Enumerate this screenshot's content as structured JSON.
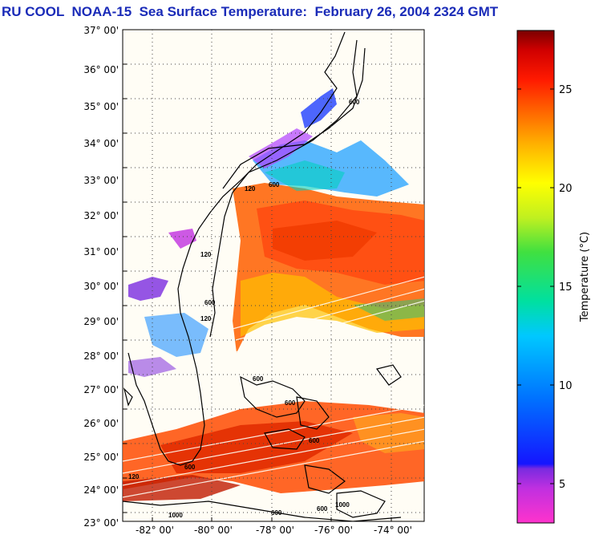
{
  "header": {
    "title": "RU COOL  NOAA-15  Sea Surface Temperature:  February 26, 2004 2324 GMT"
  },
  "map": {
    "lat_labels": [
      "37° 00'",
      "36° 00'",
      "35° 00'",
      "34° 00'",
      "33° 00'",
      "32° 00'",
      "31° 00'",
      "30° 00'",
      "29° 00'",
      "28° 00'",
      "27° 00'",
      "26° 00'",
      "25° 00'",
      "24° 00'",
      "23° 00'"
    ],
    "lon_labels": [
      "-82° 00'",
      "-80° 00'",
      "-78° 00'",
      "-76° 00'",
      "-74° 00'"
    ],
    "contour_labels": [
      "600",
      "120",
      "600",
      "120",
      "600",
      "120",
      "600",
      "600",
      "600",
      "120",
      "600",
      "1000",
      "600",
      "600",
      "1000"
    ],
    "colors": {
      "background": "#fffdf5",
      "land_outline": "#000000",
      "grid_dots": "#444444"
    }
  },
  "colorbar": {
    "label": "Temperature (°C)",
    "ticks": [
      "25",
      "20",
      "15",
      "10",
      "5"
    ],
    "range": [
      3,
      28.5
    ],
    "colors": [
      "#ff33cc",
      "#c030e0",
      "#7a2be0",
      "#1515ff",
      "#0070ff",
      "#00c8ff",
      "#00e0a0",
      "#40e040",
      "#c0f020",
      "#ffff00",
      "#ffb000",
      "#ff6000",
      "#ff1a00",
      "#d00000",
      "#7a0000"
    ]
  }
}
